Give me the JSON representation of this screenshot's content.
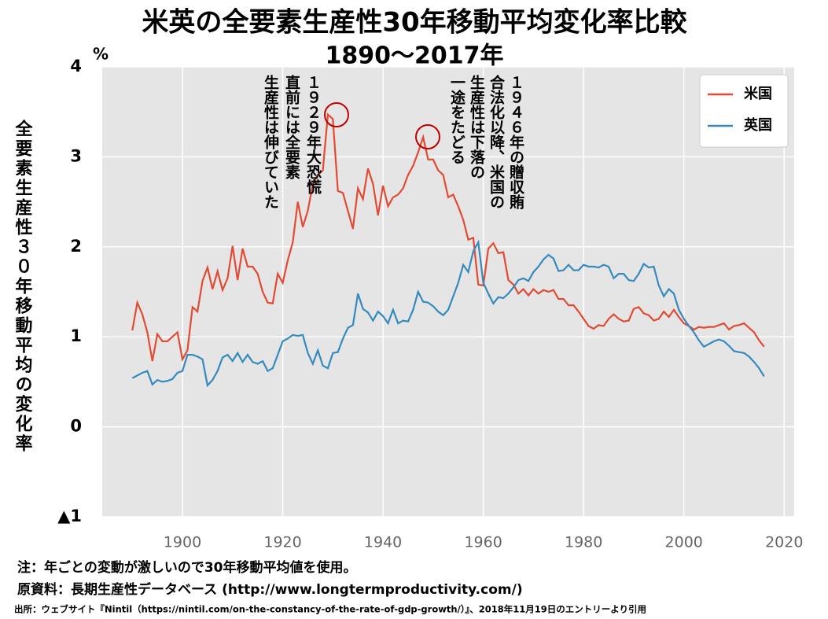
{
  "chart_data": {
    "type": "line",
    "title": "米英の全要素生産性30年移動平均変化率比較",
    "subtitle": "1890～2017年",
    "y_unit": "%",
    "y_label": "全要素生産性３０年移動平均の変化率",
    "x": [
      1890,
      1891,
      1892,
      1893,
      1894,
      1895,
      1896,
      1897,
      1898,
      1899,
      1900,
      1901,
      1902,
      1903,
      1904,
      1905,
      1906,
      1907,
      1908,
      1909,
      1910,
      1911,
      1912,
      1913,
      1914,
      1915,
      1916,
      1917,
      1918,
      1919,
      1920,
      1921,
      1922,
      1923,
      1924,
      1925,
      1926,
      1927,
      1928,
      1929,
      1930,
      1931,
      1932,
      1933,
      1934,
      1935,
      1936,
      1937,
      1938,
      1939,
      1940,
      1941,
      1942,
      1943,
      1944,
      1945,
      1946,
      1947,
      1948,
      1949,
      1950,
      1951,
      1952,
      1953,
      1954,
      1955,
      1956,
      1957,
      1958,
      1959,
      1960,
      1961,
      1962,
      1963,
      1964,
      1965,
      1966,
      1967,
      1968,
      1969,
      1970,
      1971,
      1972,
      1973,
      1974,
      1975,
      1976,
      1977,
      1978,
      1979,
      1980,
      1981,
      1982,
      1983,
      1984,
      1985,
      1986,
      1987,
      1988,
      1989,
      1990,
      1991,
      1992,
      1993,
      1994,
      1995,
      1996,
      1997,
      1998,
      1999,
      2000,
      2001,
      2002,
      2003,
      2004,
      2005,
      2006,
      2007,
      2008,
      2009,
      2010,
      2011,
      2012,
      2013,
      2014,
      2015,
      2016
    ],
    "series": [
      {
        "name": "米国",
        "color": "#e24a33",
        "values": [
          1.07,
          1.38,
          1.25,
          1.05,
          0.73,
          1.03,
          0.95,
          0.95,
          1.0,
          1.05,
          0.75,
          0.85,
          1.33,
          1.28,
          1.62,
          1.77,
          1.53,
          1.73,
          1.52,
          1.65,
          2.01,
          1.63,
          1.98,
          1.78,
          1.78,
          1.7,
          1.5,
          1.38,
          1.37,
          1.7,
          1.6,
          1.85,
          2.05,
          2.5,
          2.22,
          2.4,
          2.7,
          2.8,
          2.85,
          3.47,
          3.42,
          2.62,
          2.6,
          2.4,
          2.2,
          2.65,
          2.53,
          2.87,
          2.7,
          2.35,
          2.68,
          2.45,
          2.55,
          2.58,
          2.65,
          2.8,
          2.9,
          3.05,
          3.22,
          2.97,
          2.97,
          2.85,
          2.8,
          2.55,
          2.58,
          2.45,
          2.3,
          2.08,
          2.1,
          1.58,
          1.57,
          1.98,
          2.04,
          1.93,
          1.94,
          1.63,
          1.58,
          1.48,
          1.53,
          1.46,
          1.53,
          1.48,
          1.52,
          1.5,
          1.52,
          1.42,
          1.42,
          1.35,
          1.35,
          1.28,
          1.2,
          1.12,
          1.09,
          1.13,
          1.12,
          1.2,
          1.25,
          1.2,
          1.17,
          1.18,
          1.31,
          1.33,
          1.26,
          1.24,
          1.18,
          1.2,
          1.28,
          1.22,
          1.3,
          1.22,
          1.15,
          1.12,
          1.08,
          1.11,
          1.1,
          1.11,
          1.11,
          1.13,
          1.15,
          1.08,
          1.12,
          1.13,
          1.15,
          1.1,
          1.05,
          0.96,
          0.89
        ]
      },
      {
        "name": "英国",
        "color": "#348abd",
        "values": [
          0.54,
          0.57,
          0.6,
          0.62,
          0.47,
          0.52,
          0.5,
          0.51,
          0.53,
          0.6,
          0.62,
          0.8,
          0.8,
          0.78,
          0.75,
          0.46,
          0.52,
          0.62,
          0.77,
          0.8,
          0.73,
          0.82,
          0.72,
          0.8,
          0.72,
          0.7,
          0.73,
          0.62,
          0.65,
          0.8,
          0.95,
          0.98,
          1.02,
          1.01,
          1.02,
          0.82,
          0.7,
          0.85,
          0.68,
          0.65,
          0.82,
          0.83,
          0.98,
          1.1,
          1.13,
          1.48,
          1.31,
          1.27,
          1.18,
          1.28,
          1.23,
          1.15,
          1.3,
          1.15,
          1.18,
          1.17,
          1.3,
          1.5,
          1.39,
          1.38,
          1.34,
          1.28,
          1.24,
          1.3,
          1.45,
          1.6,
          1.8,
          1.72,
          1.95,
          2.05,
          1.6,
          1.48,
          1.37,
          1.44,
          1.43,
          1.48,
          1.55,
          1.63,
          1.65,
          1.62,
          1.72,
          1.78,
          1.86,
          1.91,
          1.87,
          1.73,
          1.74,
          1.8,
          1.74,
          1.74,
          1.8,
          1.78,
          1.78,
          1.77,
          1.8,
          1.78,
          1.65,
          1.7,
          1.7,
          1.63,
          1.62,
          1.7,
          1.81,
          1.77,
          1.78,
          1.57,
          1.45,
          1.53,
          1.48,
          1.3,
          1.2,
          1.12,
          1.05,
          0.96,
          0.89,
          0.92,
          0.95,
          0.97,
          0.95,
          0.9,
          0.84,
          0.83,
          0.82,
          0.78,
          0.72,
          0.65,
          0.56
        ]
      }
    ],
    "xlim": [
      1884,
      2022
    ],
    "xticks": [
      1900,
      1920,
      1940,
      1960,
      1980,
      2000,
      2020
    ],
    "ylim": [
      -1,
      4
    ],
    "yticks": [
      {
        "value": -1,
        "label": "▲1"
      },
      0,
      1,
      2,
      3,
      4
    ],
    "grid": true,
    "legend": "upper right",
    "annotations": [
      {
        "lines": [
          "１９２９年大恐慌",
          "直前には全要素",
          "生産性は伸びていた"
        ]
      },
      {
        "lines": [
          "１９４６年の贈収賄",
          "合法化以降、米国の",
          "生産性は下落の",
          "一途をたどる"
        ]
      }
    ],
    "notes": [
      "注：年ごとの変動が激しいので30年移動平均値を使用。",
      "原資料：長期生産性データベース (http://www.longtermproductivity.com/)",
      "出所：ウェブサイト『Nintil（https://nintil.com/on-the-constancy-of-the-rate-of-gdp-growth/）』、2018年11月19日のエントリーより引用"
    ]
  }
}
